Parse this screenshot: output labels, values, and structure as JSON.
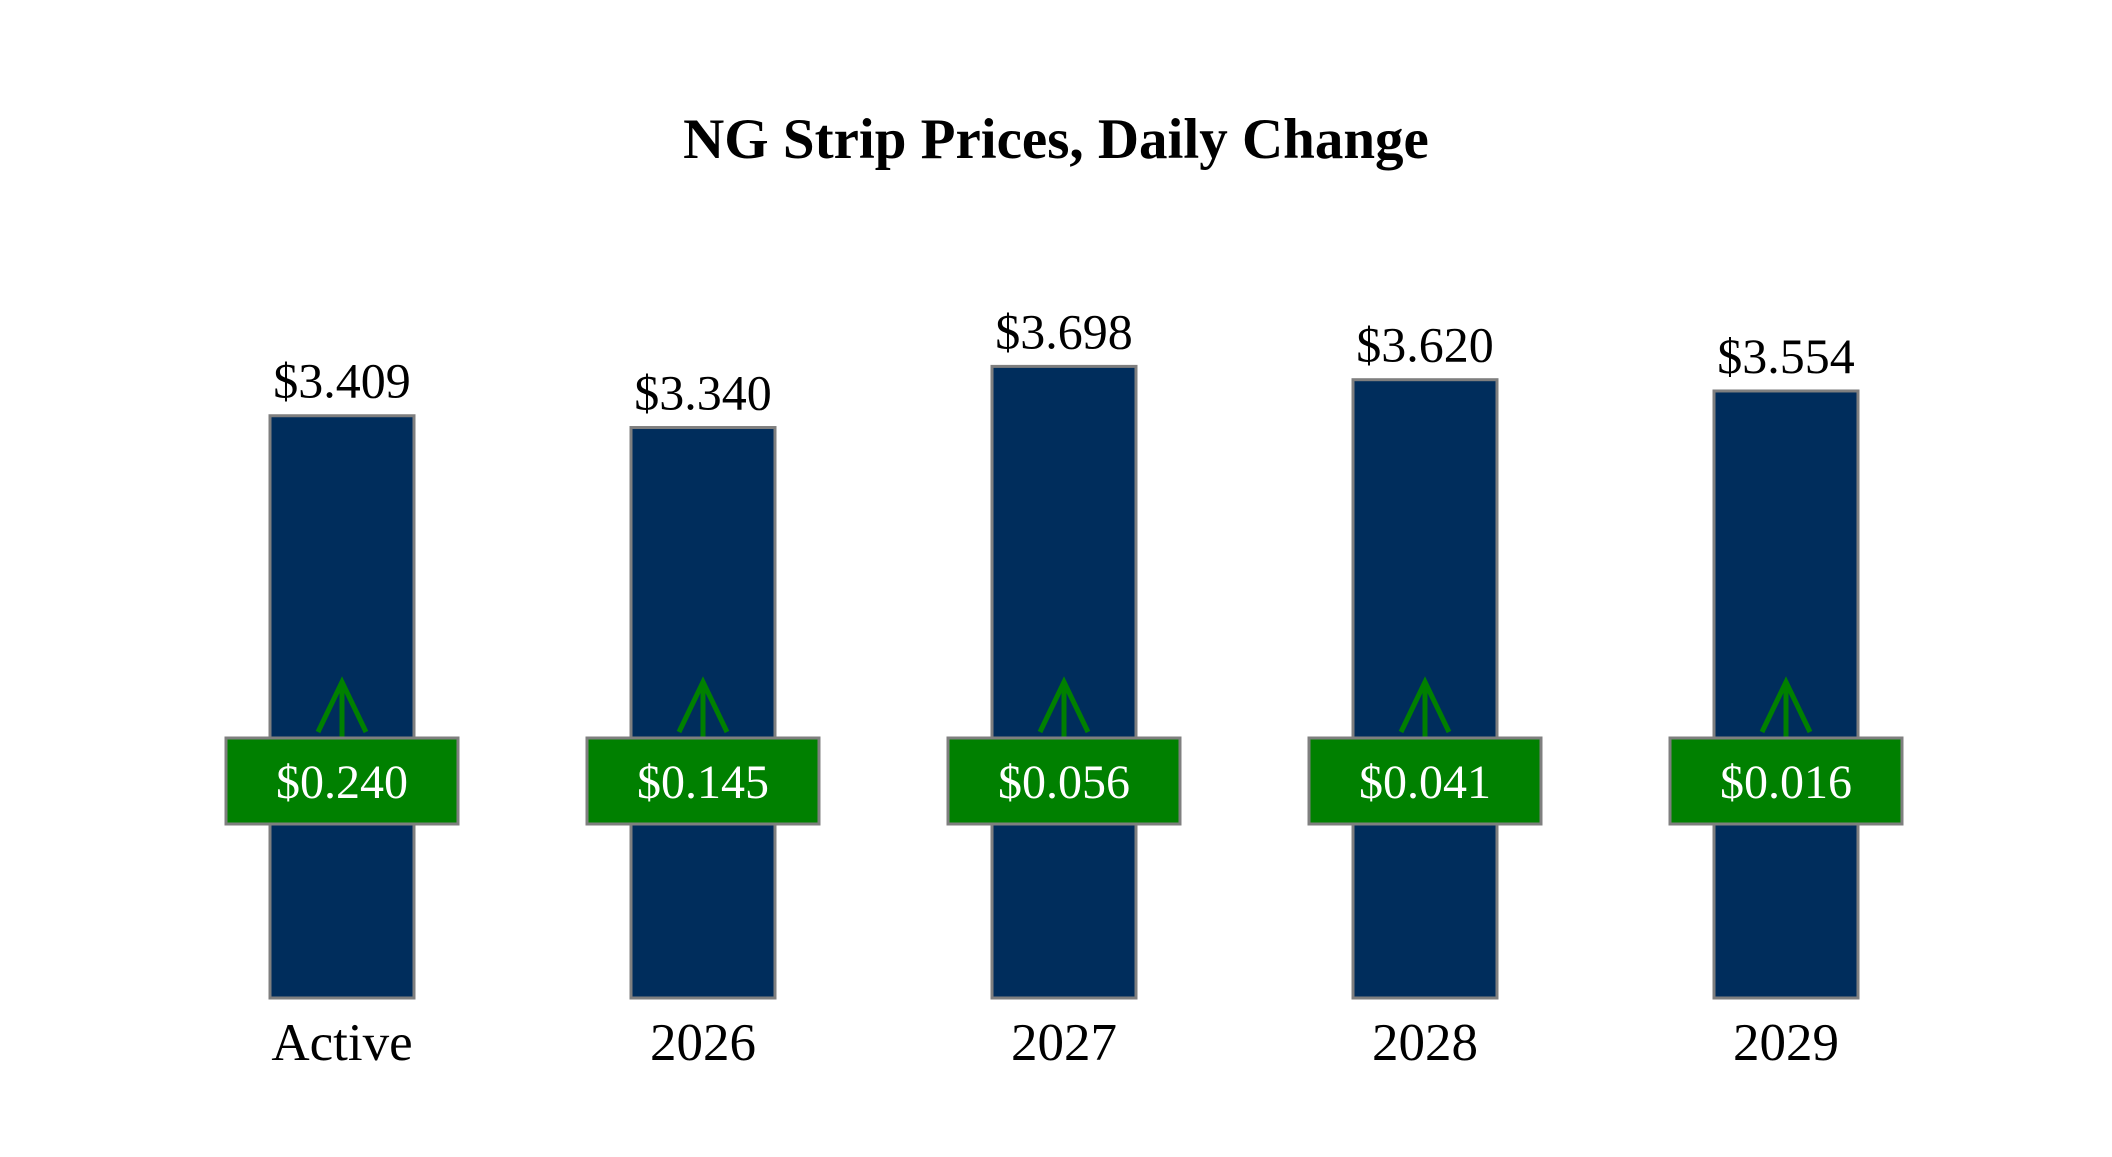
{
  "chart_data": {
    "type": "bar",
    "title": "NG Strip Prices, Daily Change",
    "categories": [
      "Active",
      "2026",
      "2027",
      "2028",
      "2029"
    ],
    "values": [
      3.409,
      3.34,
      3.698,
      3.62,
      3.554
    ],
    "value_labels": [
      "$3.409",
      "$3.340",
      "$3.698",
      "$3.620",
      "$3.554"
    ],
    "changes": [
      0.24,
      0.145,
      0.056,
      0.041,
      0.016
    ],
    "change_labels": [
      "$0.240",
      "$0.145",
      "$0.056",
      "$0.041",
      "$0.016"
    ],
    "change_direction": [
      "up",
      "up",
      "up",
      "up",
      "up"
    ],
    "xlabel": "",
    "ylabel": "",
    "ylim": [
      0,
      3.8
    ],
    "grid": false,
    "legend": "none",
    "colors": {
      "bar": "#002d5c",
      "bar_border": "#7f7f7f",
      "change_box": "#008000",
      "change_box_border": "#7f7f7f",
      "arrow": "#008000",
      "text": "#000000",
      "change_text": "#ffffff"
    },
    "icons": {
      "change_up": "up-arrow-icon"
    }
  }
}
